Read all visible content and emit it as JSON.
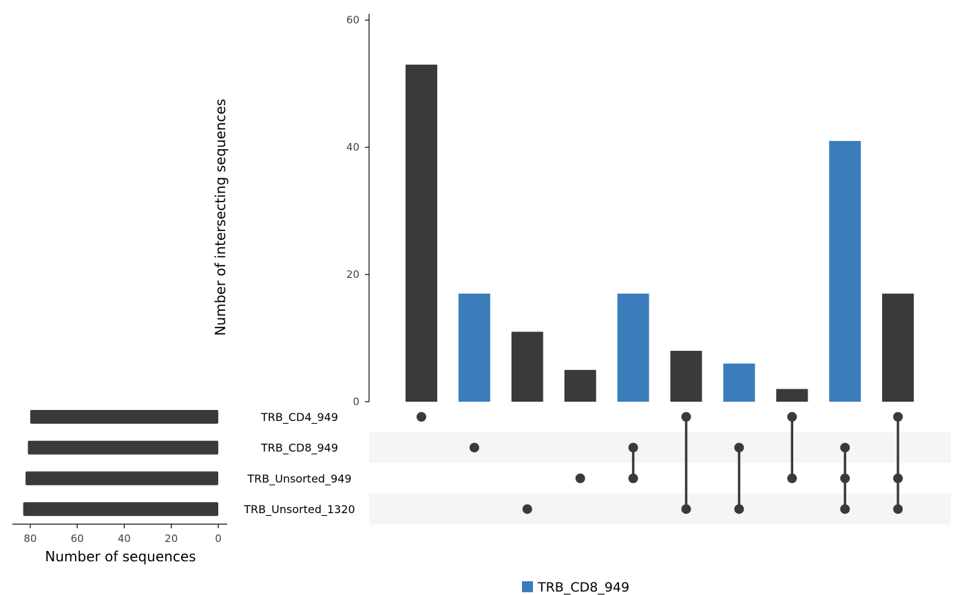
{
  "chart_data": {
    "type": "bar",
    "subtype": "upset",
    "intersection_axis": {
      "ylabel": "Number of intersecting sequences",
      "ylim": [
        0,
        61
      ],
      "ticks": [
        0,
        20,
        40,
        60
      ]
    },
    "sets_axis": {
      "xlabel": "Number of sequences",
      "xlim": [
        0,
        87
      ],
      "ticks": [
        80,
        60,
        40,
        20,
        0
      ],
      "reversed": true
    },
    "sets": [
      {
        "name": "TRB_CD4_949",
        "size": 80
      },
      {
        "name": "TRB_CD8_949",
        "size": 81
      },
      {
        "name": "TRB_Unsorted_949",
        "size": 82
      },
      {
        "name": "TRB_Unsorted_1320",
        "size": 83
      }
    ],
    "intersections": [
      {
        "sets": [
          "TRB_CD4_949"
        ],
        "value": 53,
        "highlight": false
      },
      {
        "sets": [
          "TRB_CD8_949"
        ],
        "value": 17,
        "highlight": true
      },
      {
        "sets": [
          "TRB_Unsorted_1320"
        ],
        "value": 11,
        "highlight": false
      },
      {
        "sets": [
          "TRB_Unsorted_949"
        ],
        "value": 5,
        "highlight": false
      },
      {
        "sets": [
          "TRB_CD8_949",
          "TRB_Unsorted_949"
        ],
        "value": 17,
        "highlight": true
      },
      {
        "sets": [
          "TRB_CD4_949",
          "TRB_Unsorted_1320"
        ],
        "value": 8,
        "highlight": false
      },
      {
        "sets": [
          "TRB_CD8_949",
          "TRB_Unsorted_1320"
        ],
        "value": 6,
        "highlight": true
      },
      {
        "sets": [
          "TRB_CD4_949",
          "TRB_Unsorted_949"
        ],
        "value": 2,
        "highlight": false
      },
      {
        "sets": [
          "TRB_CD8_949",
          "TRB_Unsorted_949",
          "TRB_Unsorted_1320"
        ],
        "value": 41,
        "highlight": true
      },
      {
        "sets": [
          "TRB_CD4_949",
          "TRB_Unsorted_949",
          "TRB_Unsorted_1320"
        ],
        "value": 17,
        "highlight": false
      }
    ],
    "legend": {
      "label": "TRB_CD8_949",
      "position": "bottom"
    },
    "colors": {
      "default": "#3a3a3a",
      "highlight": "#3a7dba",
      "stripe": "#f5f5f5",
      "axis": "#000000"
    }
  }
}
